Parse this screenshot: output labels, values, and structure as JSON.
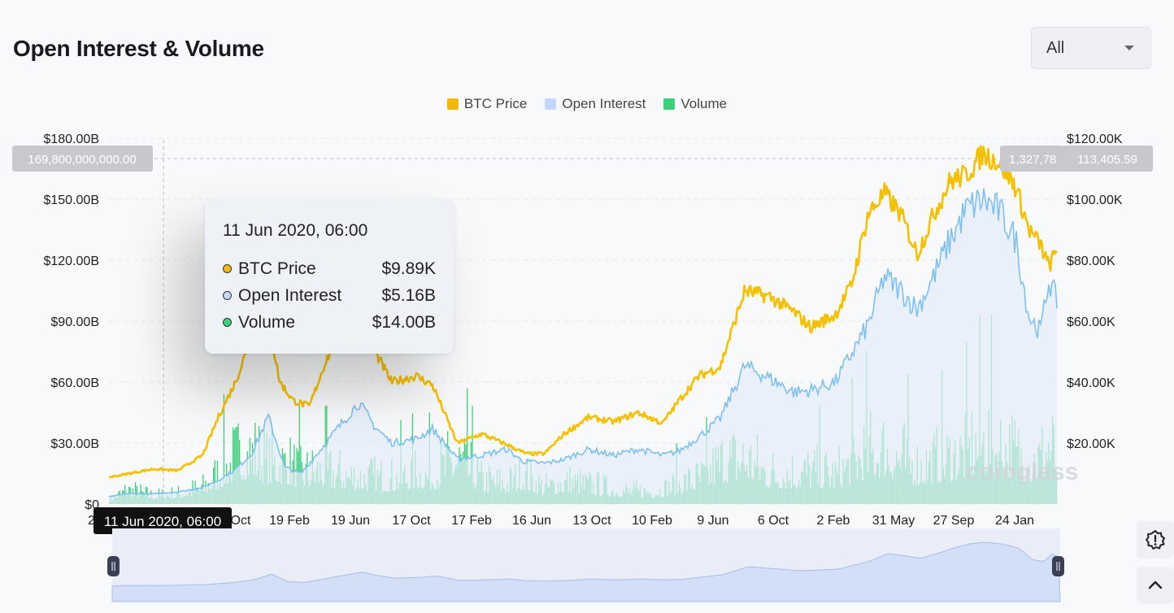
{
  "header": {
    "title": "Open Interest & Volume"
  },
  "range_select": {
    "value": "All"
  },
  "legend": [
    {
      "label": "BTC Price",
      "color": "#f0b90b"
    },
    {
      "label": "Open Interest",
      "color": "#c4d7fb"
    },
    {
      "label": "Volume",
      "color": "#3ecf7a"
    }
  ],
  "crosshair": {
    "left_value": "169,800,000,000.00",
    "right_value_clipped": "1,327,78",
    "right_value": "113,405.59",
    "x_label": "11 Jun 2020, 06:00",
    "x_label_clipped_prefix": "2"
  },
  "tooltip": {
    "date": "11 Jun 2020, 06:00",
    "rows": [
      {
        "label": "BTC Price",
        "value": "$9.89K",
        "color": "#f0b90b"
      },
      {
        "label": "Open Interest",
        "value": "$5.16B",
        "color": "#c4d7fb"
      },
      {
        "label": "Volume",
        "value": "$14.00B",
        "color": "#3ecf7a"
      }
    ]
  },
  "watermark": "coinglass",
  "chart_data": {
    "type": "line",
    "y_left_ticks": [
      "$0",
      "$30.00B",
      "$60.00B",
      "$90.00B",
      "$120.00B",
      "$150.00B",
      "$180.00B"
    ],
    "y_right_ticks": [
      "$20.00K",
      "$40.00K",
      "$60.00K",
      "$80.00K",
      "$100.00K",
      "$120.00K"
    ],
    "x_ticks": [
      "Oct",
      "19 Feb",
      "19 Jun",
      "17 Oct",
      "17 Feb",
      "16 Jun",
      "13 Oct",
      "10 Feb",
      "9 Jun",
      "6 Oct",
      "2 Feb",
      "31 May",
      "27 Sep",
      "24 Jan"
    ],
    "y_left_range": [
      0,
      180
    ],
    "y_right_range": [
      0,
      120
    ],
    "grid": true,
    "legend_position": "top-center",
    "series": [
      {
        "name": "BTC Price",
        "axis": "right",
        "values": [
          [
            2020.33,
            8.8
          ],
          [
            2020.44,
            9.89
          ],
          [
            2020.6,
            11.5
          ],
          [
            2020.75,
            11.0
          ],
          [
            2020.9,
            16.0
          ],
          [
            2021.0,
            29.0
          ],
          [
            2021.1,
            40.0
          ],
          [
            2021.2,
            55.0
          ],
          [
            2021.3,
            60.0
          ],
          [
            2021.37,
            40.0
          ],
          [
            2021.45,
            34.0
          ],
          [
            2021.55,
            32.0
          ],
          [
            2021.65,
            47.0
          ],
          [
            2021.8,
            62.0
          ],
          [
            2021.87,
            64.0
          ],
          [
            2021.95,
            50.0
          ],
          [
            2022.05,
            40.0
          ],
          [
            2022.2,
            42.0
          ],
          [
            2022.3,
            39.0
          ],
          [
            2022.45,
            20.0
          ],
          [
            2022.6,
            23.0
          ],
          [
            2022.75,
            19.5
          ],
          [
            2022.87,
            16.5
          ],
          [
            2022.98,
            16.5
          ],
          [
            2023.1,
            23.0
          ],
          [
            2023.25,
            28.5
          ],
          [
            2023.4,
            27.0
          ],
          [
            2023.55,
            30.0
          ],
          [
            2023.7,
            26.5
          ],
          [
            2023.8,
            34.0
          ],
          [
            2023.92,
            42.0
          ],
          [
            2024.05,
            45.0
          ],
          [
            2024.2,
            70.0
          ],
          [
            2024.35,
            68.0
          ],
          [
            2024.5,
            63.0
          ],
          [
            2024.6,
            58.0
          ],
          [
            2024.75,
            62.0
          ],
          [
            2024.85,
            72.0
          ],
          [
            2024.95,
            95.0
          ],
          [
            2025.05,
            102.0
          ],
          [
            2025.15,
            95.0
          ],
          [
            2025.25,
            82.0
          ],
          [
            2025.35,
            95.0
          ],
          [
            2025.45,
            106.0
          ],
          [
            2025.55,
            108.0
          ],
          [
            2025.65,
            115.0
          ],
          [
            2025.75,
            112.0
          ],
          [
            2025.85,
            104.0
          ],
          [
            2025.93,
            90.0
          ],
          [
            2026.0,
            85.0
          ],
          [
            2026.05,
            78.0
          ],
          [
            2026.1,
            83.0
          ]
        ]
      },
      {
        "name": "Open Interest",
        "axis": "left",
        "values": [
          [
            2020.33,
            3.5
          ],
          [
            2020.44,
            5.16
          ],
          [
            2020.6,
            5.0
          ],
          [
            2020.75,
            6.0
          ],
          [
            2020.9,
            8.0
          ],
          [
            2021.0,
            12.0
          ],
          [
            2021.1,
            17.0
          ],
          [
            2021.2,
            25.0
          ],
          [
            2021.3,
            43.0
          ],
          [
            2021.4,
            18.0
          ],
          [
            2021.5,
            15.0
          ],
          [
            2021.6,
            25.0
          ],
          [
            2021.75,
            40.0
          ],
          [
            2021.85,
            50.0
          ],
          [
            2021.95,
            38.0
          ],
          [
            2022.05,
            30.0
          ],
          [
            2022.2,
            32.0
          ],
          [
            2022.3,
            37.0
          ],
          [
            2022.45,
            22.0
          ],
          [
            2022.6,
            24.0
          ],
          [
            2022.75,
            27.0
          ],
          [
            2022.85,
            21.0
          ],
          [
            2022.98,
            20.0
          ],
          [
            2023.1,
            22.0
          ],
          [
            2023.25,
            27.0
          ],
          [
            2023.4,
            24.0
          ],
          [
            2023.55,
            27.0
          ],
          [
            2023.7,
            24.0
          ],
          [
            2023.8,
            26.0
          ],
          [
            2023.95,
            35.0
          ],
          [
            2024.05,
            42.0
          ],
          [
            2024.2,
            68.0
          ],
          [
            2024.35,
            62.0
          ],
          [
            2024.5,
            55.0
          ],
          [
            2024.6,
            56.0
          ],
          [
            2024.75,
            60.0
          ],
          [
            2024.85,
            74.0
          ],
          [
            2024.95,
            88.0
          ],
          [
            2025.05,
            112.0
          ],
          [
            2025.15,
            105.0
          ],
          [
            2025.25,
            96.0
          ],
          [
            2025.35,
            112.0
          ],
          [
            2025.45,
            130.0
          ],
          [
            2025.55,
            145.0
          ],
          [
            2025.65,
            150.0
          ],
          [
            2025.75,
            144.0
          ],
          [
            2025.85,
            130.0
          ],
          [
            2025.93,
            92.0
          ],
          [
            2026.0,
            85.0
          ],
          [
            2026.05,
            110.0
          ],
          [
            2026.1,
            100.0
          ]
        ]
      },
      {
        "name": "Volume",
        "axis": "left",
        "values": [
          [
            2020.33,
            4.0
          ],
          [
            2020.44,
            14.0
          ],
          [
            2020.6,
            8.0
          ],
          [
            2020.75,
            10.0
          ],
          [
            2020.9,
            16.0
          ],
          [
            2021.0,
            30.0
          ],
          [
            2021.1,
            45.0
          ],
          [
            2021.2,
            50.0
          ],
          [
            2021.3,
            38.0
          ],
          [
            2021.4,
            40.0
          ],
          [
            2021.5,
            30.0
          ],
          [
            2021.6,
            32.0
          ],
          [
            2021.75,
            28.0
          ],
          [
            2021.85,
            26.0
          ],
          [
            2021.95,
            25.0
          ],
          [
            2022.05,
            24.0
          ],
          [
            2022.2,
            30.0
          ],
          [
            2022.3,
            28.0
          ],
          [
            2022.45,
            45.0
          ],
          [
            2022.6,
            22.0
          ],
          [
            2022.75,
            20.0
          ],
          [
            2022.85,
            28.0
          ],
          [
            2022.98,
            16.0
          ],
          [
            2023.1,
            22.0
          ],
          [
            2023.25,
            18.0
          ],
          [
            2023.4,
            14.0
          ],
          [
            2023.55,
            12.0
          ],
          [
            2023.7,
            14.0
          ],
          [
            2023.8,
            20.0
          ],
          [
            2023.95,
            26.0
          ],
          [
            2024.05,
            40.0
          ],
          [
            2024.2,
            45.0
          ],
          [
            2024.35,
            30.0
          ],
          [
            2024.5,
            30.0
          ],
          [
            2024.6,
            32.0
          ],
          [
            2024.75,
            28.0
          ],
          [
            2024.85,
            40.0
          ],
          [
            2024.95,
            50.0
          ],
          [
            2025.05,
            52.0
          ],
          [
            2025.15,
            45.0
          ],
          [
            2025.25,
            36.0
          ],
          [
            2025.35,
            40.0
          ],
          [
            2025.45,
            45.0
          ],
          [
            2025.55,
            50.0
          ],
          [
            2025.65,
            62.0
          ],
          [
            2025.75,
            55.0
          ],
          [
            2025.85,
            48.0
          ],
          [
            2025.93,
            42.0
          ],
          [
            2026.0,
            45.0
          ],
          [
            2026.05,
            60.0
          ],
          [
            2026.1,
            40.0
          ]
        ]
      }
    ]
  }
}
